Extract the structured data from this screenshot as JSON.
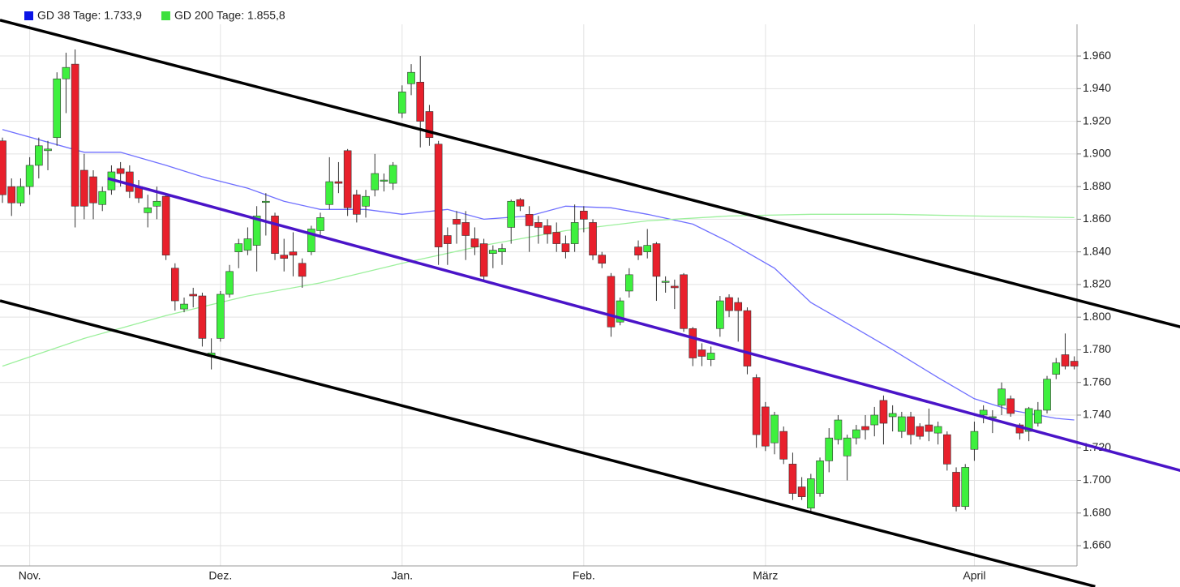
{
  "chart_data": {
    "type": "candlestick",
    "up_color": "#3ef03e",
    "down_color": "#e8202c",
    "categories": [
      null,
      null,
      null,
      "Nov.",
      null,
      null,
      null,
      null,
      null,
      null,
      null,
      null,
      null,
      null,
      null,
      null,
      null,
      null,
      null,
      null,
      null,
      null,
      null,
      null,
      "Dez.",
      null,
      null,
      null,
      null,
      null,
      null,
      null,
      null,
      null,
      null,
      null,
      null,
      null,
      null,
      null,
      null,
      null,
      null,
      null,
      "Jan.",
      null,
      null,
      null,
      null,
      null,
      null,
      null,
      null,
      null,
      null,
      null,
      null,
      null,
      null,
      null,
      null,
      null,
      null,
      null,
      "Feb.",
      null,
      null,
      null,
      null,
      null,
      null,
      null,
      null,
      null,
      null,
      null,
      null,
      null,
      null,
      null,
      null,
      null,
      null,
      null,
      "März",
      null,
      null,
      null,
      null,
      null,
      null,
      null,
      null,
      null,
      null,
      null,
      null,
      null,
      null,
      null,
      null,
      null,
      null,
      null,
      null,
      null,
      null,
      "April",
      null,
      null,
      null,
      null,
      null,
      null,
      null,
      null,
      null,
      null,
      null
    ],
    "open": [
      1908,
      1880,
      1870,
      1880,
      1893,
      1902,
      1910,
      1946,
      1955,
      1890,
      1886,
      1869,
      1878,
      1891,
      1889,
      1880,
      1864,
      1868,
      1874,
      1830,
      1805,
      1814,
      1813,
      1776,
      1787,
      1814,
      1840,
      1841,
      1844,
      1871,
      1862,
      1838,
      1840,
      1833,
      1840,
      1853,
      1869,
      1883,
      1902,
      1875,
      1868,
      1878,
      1884,
      1882,
      1925,
      1943,
      1944,
      1926,
      1906,
      1850,
      1860,
      1858,
      1848,
      1845,
      1839,
      1840,
      1855,
      1872,
      1863,
      1858,
      1856,
      1852,
      1845,
      1845,
      1865,
      1858,
      1838,
      1825,
      1797,
      1816,
      1843,
      1840,
      1845,
      1822,
      1819,
      1826,
      1793,
      1780,
      1774,
      1793,
      1812,
      1809,
      1804,
      1763,
      1745,
      1723,
      1730,
      1710,
      1696,
      1683,
      1692,
      1712,
      1725,
      1715,
      1726,
      1733,
      1734,
      1749,
      1739,
      1730,
      1739,
      1733,
      1734,
      1729,
      1728,
      1705,
      1684,
      1719,
      1740,
      1739,
      1746,
      1750,
      1734,
      1730,
      1735,
      1743,
      1765,
      1777,
      1773
    ],
    "high": [
      1910,
      1885,
      1885,
      1898,
      1910,
      1908,
      1950,
      1962,
      1964,
      1900,
      1890,
      1880,
      1893,
      1895,
      1893,
      1884,
      1875,
      1880,
      1876,
      1833,
      1812,
      1818,
      1815,
      1787,
      1816,
      1832,
      1848,
      1855,
      1868,
      1876,
      1864,
      1848,
      1852,
      1836,
      1856,
      1864,
      1898,
      1895,
      1903,
      1878,
      1878,
      1900,
      1888,
      1895,
      1942,
      1955,
      1960,
      1930,
      1908,
      1855,
      1865,
      1865,
      1855,
      1848,
      1844,
      1845,
      1872,
      1873,
      1868,
      1862,
      1860,
      1858,
      1850,
      1869,
      1868,
      1860,
      1840,
      1827,
      1812,
      1830,
      1847,
      1854,
      1846,
      1825,
      1823,
      1827,
      1794,
      1784,
      1782,
      1813,
      1814,
      1812,
      1806,
      1765,
      1748,
      1742,
      1733,
      1717,
      1702,
      1704,
      1714,
      1732,
      1740,
      1728,
      1734,
      1740,
      1745,
      1752,
      1746,
      1742,
      1742,
      1735,
      1744,
      1736,
      1730,
      1708,
      1710,
      1736,
      1746,
      1743,
      1760,
      1752,
      1735,
      1745,
      1748,
      1764,
      1775,
      1790,
      1776
    ],
    "low": [
      1870,
      1862,
      1868,
      1875,
      1885,
      1890,
      1905,
      1925,
      1855,
      1860,
      1860,
      1865,
      1875,
      1880,
      1873,
      1870,
      1855,
      1860,
      1835,
      1804,
      1803,
      1806,
      1782,
      1768,
      1785,
      1812,
      1830,
      1838,
      1828,
      1850,
      1835,
      1828,
      1825,
      1818,
      1838,
      1850,
      1866,
      1876,
      1862,
      1858,
      1861,
      1874,
      1877,
      1878,
      1922,
      1936,
      1904,
      1905,
      1832,
      1832,
      1845,
      1835,
      1838,
      1822,
      1830,
      1832,
      1845,
      1865,
      1840,
      1845,
      1845,
      1840,
      1836,
      1840,
      1852,
      1835,
      1830,
      1788,
      1795,
      1812,
      1835,
      1836,
      1810,
      1815,
      1805,
      1791,
      1770,
      1770,
      1770,
      1788,
      1800,
      1785,
      1765,
      1720,
      1718,
      1716,
      1710,
      1688,
      1688,
      1680,
      1690,
      1705,
      1722,
      1700,
      1722,
      1725,
      1727,
      1722,
      1730,
      1726,
      1722,
      1725,
      1724,
      1722,
      1706,
      1681,
      1682,
      1712,
      1735,
      1729,
      1740,
      1739,
      1725,
      1724,
      1733,
      1741,
      1762,
      1768,
      1768
    ],
    "close": [
      1875,
      1870,
      1880,
      1893,
      1905,
      1903,
      1946,
      1953,
      1868,
      1868,
      1870,
      1877,
      1889,
      1888,
      1877,
      1873,
      1867,
      1871,
      1838,
      1810,
      1808,
      1813,
      1787,
      1778,
      1814,
      1828,
      1845,
      1848,
      1862,
      1871,
      1839,
      1836,
      1838,
      1825,
      1854,
      1861,
      1883,
      1882,
      1867,
      1863,
      1874,
      1888,
      1884,
      1893,
      1938,
      1950,
      1920,
      1910,
      1843,
      1845,
      1857,
      1850,
      1843,
      1825,
      1841,
      1842,
      1871,
      1868,
      1856,
      1855,
      1851,
      1845,
      1840,
      1858,
      1860,
      1838,
      1833,
      1794,
      1810,
      1826,
      1838,
      1844,
      1825,
      1822,
      1818,
      1793,
      1775,
      1776,
      1778,
      1810,
      1804,
      1804,
      1770,
      1728,
      1721,
      1740,
      1713,
      1692,
      1690,
      1701,
      1712,
      1726,
      1737,
      1726,
      1731,
      1731,
      1740,
      1735,
      1741,
      1739,
      1728,
      1727,
      1730,
      1733,
      1710,
      1684,
      1708,
      1730,
      1743,
      1739,
      1756,
      1741,
      1729,
      1744,
      1743,
      1762,
      1772,
      1770,
      1770
    ],
    "series": [
      {
        "name": "GD 38 Tage: 1.733,9",
        "color": "#6f6fff",
        "legend_color": "#0a14e6",
        "x": [
          0,
          9,
          13,
          18,
          22,
          27,
          31,
          35,
          40,
          44,
          49,
          53,
          58,
          62,
          67,
          71,
          76,
          80,
          85,
          89,
          94,
          98,
          103,
          107,
          111,
          116,
          118
        ],
        "values": [
          1915,
          1901,
          1901,
          1893,
          1886,
          1879,
          1871,
          1866,
          1866,
          1863,
          1866,
          1860,
          1862,
          1868,
          1867,
          1863,
          1857,
          1846,
          1830,
          1809,
          1793,
          1780,
          1763,
          1750,
          1743,
          1738,
          1737
        ]
      },
      {
        "name": "GD 200 Tage: 1.855,8",
        "color": "#9cf09c",
        "legend_color": "#3ee03e",
        "x": [
          0,
          9,
          18,
          27,
          35,
          44,
          53,
          62,
          71,
          80,
          89,
          98,
          107,
          118
        ],
        "values": [
          1770,
          1787,
          1801,
          1813,
          1821,
          1833,
          1844,
          1853,
          1859,
          1862,
          1863,
          1863,
          1862,
          1861
        ]
      }
    ],
    "trendlines": [
      {
        "color": "#000000",
        "x": [
          -0.27,
          129.7
        ],
        "values": [
          1982,
          1794
        ]
      },
      {
        "color": "#000000",
        "x": [
          -0.27,
          120.3
        ],
        "values": [
          1810,
          1635
        ]
      },
      {
        "color": "#4a14c8",
        "x": [
          11.6,
          129.7
        ],
        "values": [
          1885,
          1706
        ]
      }
    ],
    "xlim": [
      -0.27,
      118.3
    ],
    "ylim": [
      1647.6,
      1979.4
    ],
    "yticks": [
      {
        "value": 1660,
        "label": "1.660"
      },
      {
        "value": 1680,
        "label": "1.680"
      },
      {
        "value": 1700,
        "label": "1.700"
      },
      {
        "value": 1720,
        "label": "1.720"
      },
      {
        "value": 1740,
        "label": "1.740"
      },
      {
        "value": 1760,
        "label": "1.760"
      },
      {
        "value": 1780,
        "label": "1.780"
      },
      {
        "value": 1800,
        "label": "1.800"
      },
      {
        "value": 1820,
        "label": "1.820"
      },
      {
        "value": 1840,
        "label": "1.840"
      },
      {
        "value": 1860,
        "label": "1.860"
      },
      {
        "value": 1880,
        "label": "1.880"
      },
      {
        "value": 1900,
        "label": "1.900"
      },
      {
        "value": 1920,
        "label": "1.920"
      },
      {
        "value": 1940,
        "label": "1.940"
      },
      {
        "value": 1960,
        "label": "1.960"
      }
    ],
    "grid": true
  }
}
